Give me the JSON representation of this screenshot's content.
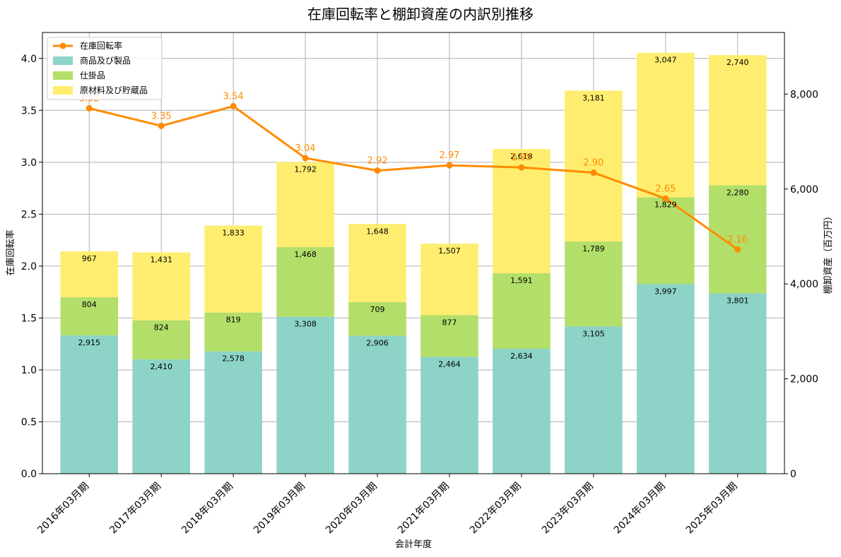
{
  "chart_data": {
    "type": "bar",
    "title": "在庫回転率と棚卸資産の内訳別推移",
    "xlabel": "会計年度",
    "ylabel_left": "在庫回転率",
    "ylabel_right": "棚卸資産（百万円）",
    "ylim_left": [
      0,
      4.25
    ],
    "ylim_right": [
      0,
      9300
    ],
    "yticks_left": [
      "0.0",
      "0.5",
      "1.0",
      "1.5",
      "2.0",
      "2.5",
      "3.0",
      "3.5",
      "4.0"
    ],
    "yticks_right": [
      "0",
      "2,000",
      "4,000",
      "6,000",
      "8,000"
    ],
    "grid": true,
    "legend_position": "top-left",
    "categories": [
      "2016年03月期",
      "2017年03月期",
      "2018年03月期",
      "2019年03月期",
      "2020年03月期",
      "2021年03月期",
      "2022年03月期",
      "2023年03月期",
      "2024年03月期",
      "2025年03月期"
    ],
    "series": [
      {
        "name": "商品及び製品",
        "axis": "right",
        "kind": "stacked-bar",
        "color": "#8dd3c7",
        "values": [
          2915,
          2410,
          2578,
          3308,
          2906,
          2464,
          2634,
          3105,
          3997,
          3801
        ],
        "labels": [
          "2,915",
          "2,410",
          "2,578",
          "3,308",
          "2,906",
          "2,464",
          "2,634",
          "3,105",
          "3,997",
          "3,801"
        ]
      },
      {
        "name": "仕掛品",
        "axis": "right",
        "kind": "stacked-bar",
        "color": "#b3de69",
        "values": [
          804,
          824,
          819,
          1468,
          709,
          877,
          1591,
          1789,
          1829,
          2280
        ],
        "labels": [
          "804",
          "824",
          "819",
          "1,468",
          "709",
          "877",
          "1,591",
          "1,789",
          "1,829",
          "2,280"
        ]
      },
      {
        "name": "原材料及び貯蔵品",
        "axis": "right",
        "kind": "stacked-bar",
        "color": "#ffed6f",
        "values": [
          967,
          1431,
          1833,
          1792,
          1648,
          1507,
          2618,
          3181,
          3047,
          2740
        ],
        "labels": [
          "967",
          "1,431",
          "1,833",
          "1,792",
          "1,648",
          "1,507",
          "2,618",
          "3,181",
          "3,047",
          "2,740"
        ]
      },
      {
        "name": "在庫回転率",
        "axis": "left",
        "kind": "line",
        "color": "#ff8c00",
        "values": [
          3.52,
          3.35,
          3.54,
          3.04,
          2.92,
          2.97,
          2.95,
          2.9,
          2.65,
          2.16
        ],
        "labels": [
          "3.52",
          "3.35",
          "3.54",
          "3.04",
          "2.92",
          "2.97",
          "2.95",
          "2.90",
          "2.65",
          "2.16"
        ]
      }
    ]
  }
}
